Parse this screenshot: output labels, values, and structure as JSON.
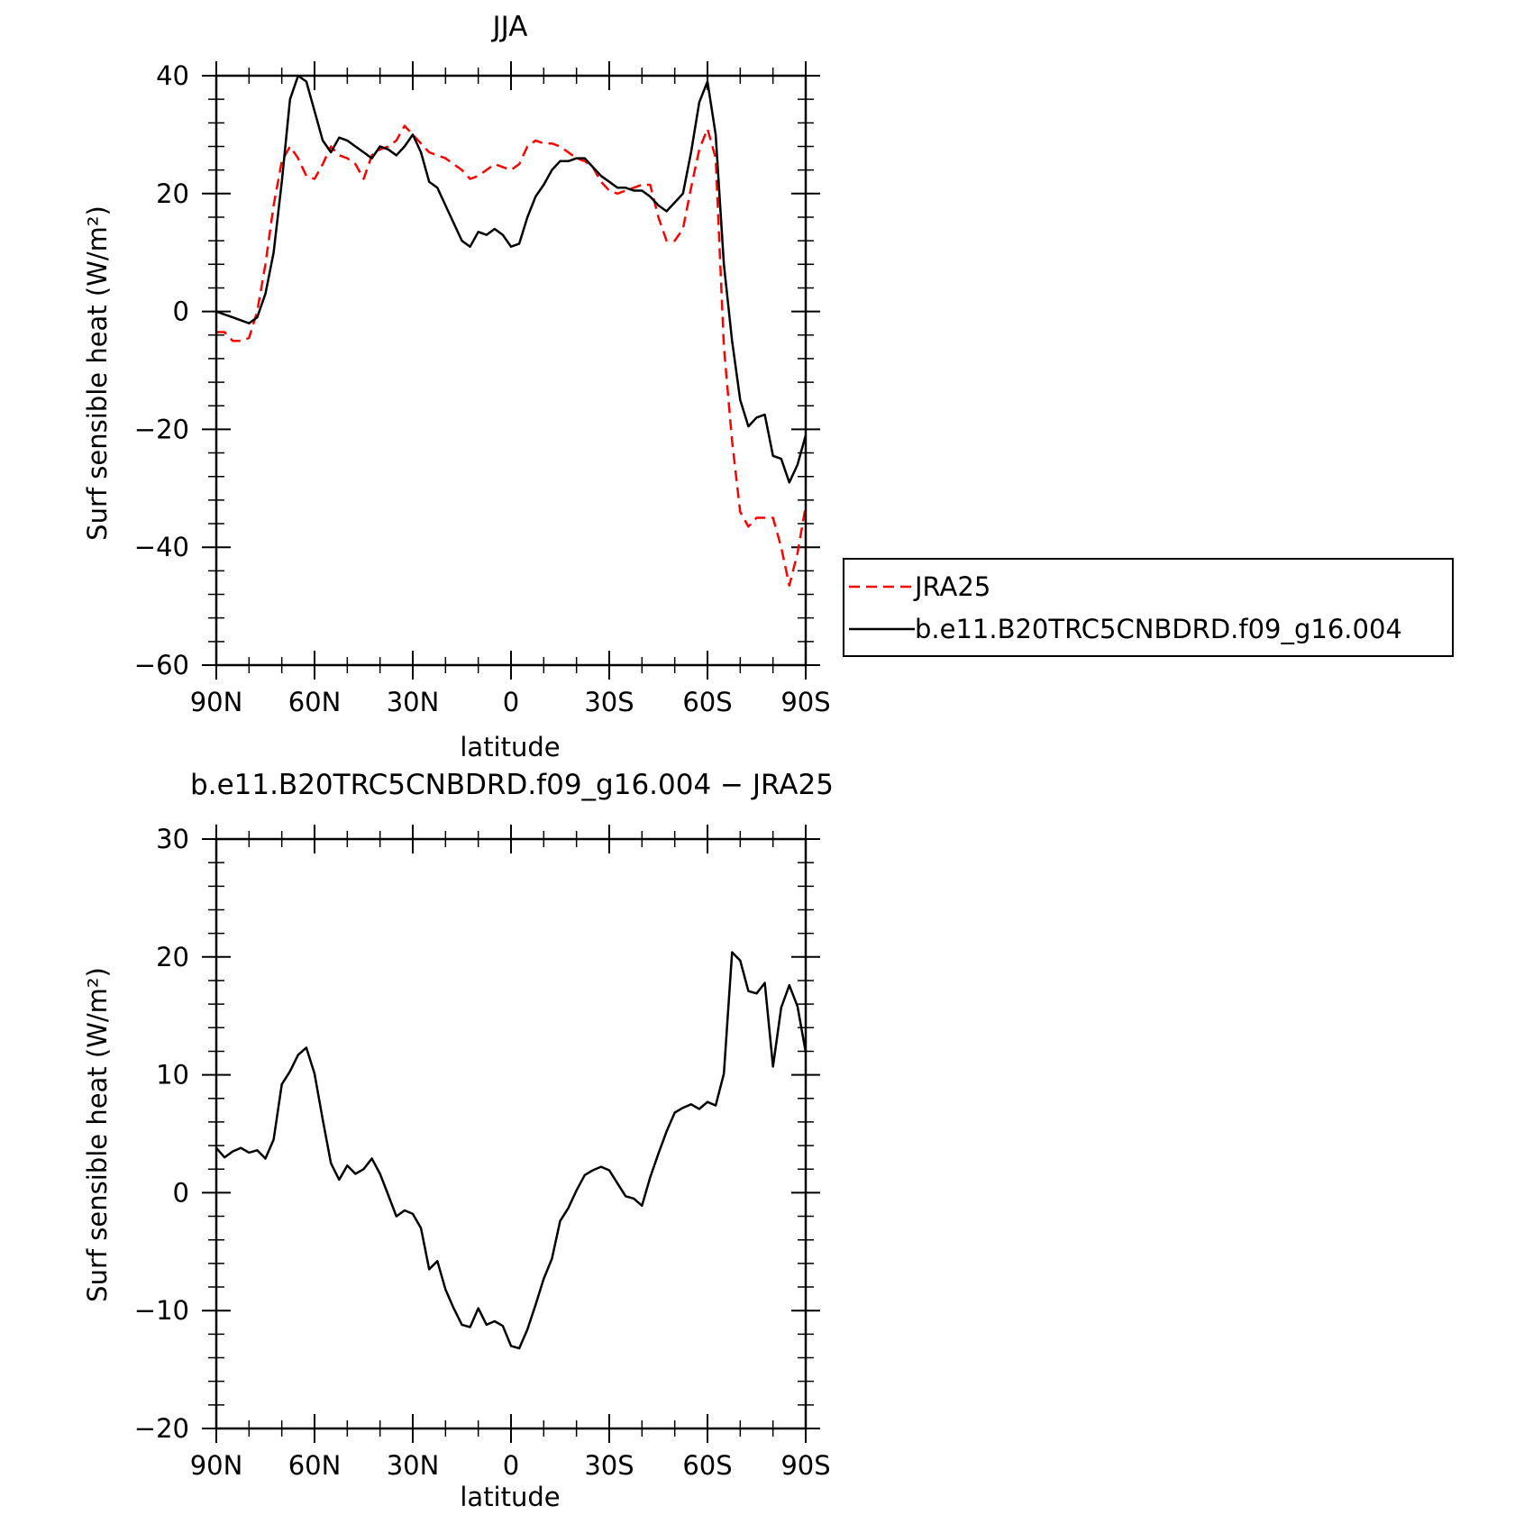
{
  "chart_data": [
    {
      "type": "line",
      "title": "JJA",
      "xlabel": "latitude",
      "ylabel": "Surf sensible heat (W/m²)",
      "ylim": [
        -60,
        40
      ],
      "yticks": [
        -60,
        -40,
        -20,
        0,
        20,
        40
      ],
      "xlim": [
        90,
        -90
      ],
      "xticks": [
        90,
        60,
        30,
        0,
        -30,
        -60,
        -90
      ],
      "xticklabels": [
        "90N",
        "60N",
        "30N",
        "0",
        "30S",
        "60S",
        "90S"
      ],
      "legend": "right, outside plot",
      "series": [
        {
          "name": "JRA25",
          "color": "#ff0000",
          "style": "dashed",
          "x": [
            90,
            87.5,
            85,
            82.5,
            80,
            77.5,
            75,
            72.5,
            70,
            67.5,
            65,
            62.5,
            60,
            57.5,
            55,
            52.5,
            50,
            47.5,
            45,
            42.5,
            40,
            37.5,
            35,
            32.5,
            30,
            27.5,
            25,
            22.5,
            20,
            17.5,
            15,
            12.5,
            10,
            7.5,
            5,
            2.5,
            0,
            -2.5,
            -5,
            -7.5,
            -10,
            -12.5,
            -15,
            -17.5,
            -20,
            -22.5,
            -25,
            -27.5,
            -30,
            -32.5,
            -35,
            -37.5,
            -40,
            -42.5,
            -45,
            -47.5,
            -50,
            -52.5,
            -55,
            -57.5,
            -60,
            -62.5,
            -65,
            -67.5,
            -70,
            -72.5,
            -75,
            -77.5,
            -80,
            -82.5,
            -85,
            -87.5,
            -90
          ],
          "y": [
            -3.5,
            -3.5,
            -5,
            -5,
            -4.5,
            0,
            8,
            18,
            25.5,
            28,
            26,
            23,
            22.5,
            25,
            28,
            26.5,
            26,
            25,
            22.5,
            26.5,
            27.5,
            28,
            29,
            31.5,
            30,
            28.5,
            27,
            26.5,
            26,
            25,
            24,
            22.5,
            23,
            24,
            25,
            24.5,
            24,
            25,
            28,
            29,
            28.5,
            28.5,
            28,
            27,
            26,
            25.5,
            24.5,
            22,
            20.5,
            20,
            20.5,
            21,
            21.5,
            21.5,
            16,
            12,
            12,
            14,
            21,
            27.5,
            31,
            26,
            -6,
            -22,
            -34,
            -36.5,
            -35,
            -35,
            -35,
            -40,
            -46.5,
            -41,
            -33
          ]
        },
        {
          "name": "b.e11.B20TRC5CNBDRD.f09_g16.004",
          "color": "#000000",
          "style": "solid",
          "x": [
            90,
            87.5,
            85,
            82.5,
            80,
            77.5,
            75,
            72.5,
            70,
            67.5,
            65,
            62.5,
            60,
            57.5,
            55,
            52.5,
            50,
            47.5,
            45,
            42.5,
            40,
            37.5,
            35,
            32.5,
            30,
            27.5,
            25,
            22.5,
            20,
            17.5,
            15,
            12.5,
            10,
            7.5,
            5,
            2.5,
            0,
            -2.5,
            -5,
            -7.5,
            -10,
            -12.5,
            -15,
            -17.5,
            -20,
            -22.5,
            -25,
            -27.5,
            -30,
            -32.5,
            -35,
            -37.5,
            -40,
            -42.5,
            -45,
            -47.5,
            -50,
            -52.5,
            -55,
            -57.5,
            -60,
            -62.5,
            -65,
            -67.5,
            -70,
            -72.5,
            -75,
            -77.5,
            -80,
            -82.5,
            -85,
            -87.5,
            -90
          ],
          "y": [
            0,
            -0.5,
            -1,
            -1.5,
            -2,
            -1,
            3,
            10,
            22,
            36,
            40,
            39,
            34,
            29,
            27,
            29.5,
            29,
            28,
            27,
            26,
            28,
            27.5,
            26.5,
            28,
            30,
            27,
            22,
            21,
            18,
            15,
            12,
            11,
            13.5,
            13,
            14,
            13,
            11,
            11.5,
            16,
            19.5,
            21.5,
            24,
            25.5,
            25.5,
            26,
            26,
            24.5,
            23,
            22,
            21,
            21,
            20.5,
            20.5,
            19.5,
            18,
            17,
            18.5,
            20,
            27,
            35.5,
            39,
            30,
            8,
            -5,
            -15,
            -19.5,
            -18,
            -17.5,
            -24.5,
            -25,
            -29,
            -26,
            -21
          ]
        }
      ]
    },
    {
      "type": "line",
      "title": "b.e11.B20TRC5CNBDRD.f09_g16.004 − JRA25",
      "xlabel": "latitude",
      "ylabel": "Surf sensible heat (W/m²)",
      "ylim": [
        -20,
        30
      ],
      "yticks": [
        -20,
        -10,
        0,
        10,
        20,
        30
      ],
      "xlim": [
        90,
        -90
      ],
      "xticks": [
        90,
        60,
        30,
        0,
        -30,
        -60,
        -90
      ],
      "xticklabels": [
        "90N",
        "60N",
        "30N",
        "0",
        "30S",
        "60S",
        "90S"
      ],
      "series": [
        {
          "color": "#000000",
          "style": "solid",
          "x": [
            90,
            87.5,
            85,
            82.5,
            80,
            77.5,
            75,
            72.5,
            70,
            67.5,
            65,
            62.5,
            60,
            57.5,
            55,
            52.5,
            50,
            47.5,
            45,
            42.5,
            40,
            37.5,
            35,
            32.5,
            30,
            27.5,
            25,
            22.5,
            20,
            17.5,
            15,
            12.5,
            10,
            7.5,
            5,
            2.5,
            0,
            -2.5,
            -5,
            -7.5,
            -10,
            -12.5,
            -15,
            -17.5,
            -20,
            -22.5,
            -25,
            -27.5,
            -30,
            -32.5,
            -35,
            -37.5,
            -40,
            -42.5,
            -45,
            -47.5,
            -50,
            -52.5,
            -55,
            -57.5,
            -60,
            -62.5,
            -65,
            -67.5,
            -70,
            -72.5,
            -75,
            -77.5,
            -80,
            -82.5,
            -85,
            -87.5,
            -90
          ],
          "y": [
            3.8,
            3.0,
            3.5,
            3.8,
            3.4,
            3.6,
            2.9,
            4.5,
            9.2,
            10.3,
            11.7,
            12.3,
            10.1,
            6.2,
            2.5,
            1.1,
            2.3,
            1.6,
            2.0,
            2.9,
            1.6,
            -0.2,
            -2.0,
            -1.5,
            -1.8,
            -3.0,
            -6.5,
            -5.8,
            -8.2,
            -9.8,
            -11.2,
            -11.4,
            -9.8,
            -11.2,
            -10.9,
            -11.3,
            -13.0,
            -13.2,
            -11.6,
            -9.5,
            -7.3,
            -5.6,
            -2.4,
            -1.3,
            0.2,
            1.5,
            1.9,
            2.2,
            1.9,
            0.8,
            -0.3,
            -0.5,
            -1.1,
            1.3,
            3.3,
            5.2,
            6.8,
            7.2,
            7.5,
            7.1,
            7.7,
            7.4,
            10.1,
            20.4,
            19.7,
            17.1,
            16.9,
            17.8,
            10.7,
            15.7,
            17.6,
            15.8,
            11.9
          ]
        }
      ]
    }
  ]
}
